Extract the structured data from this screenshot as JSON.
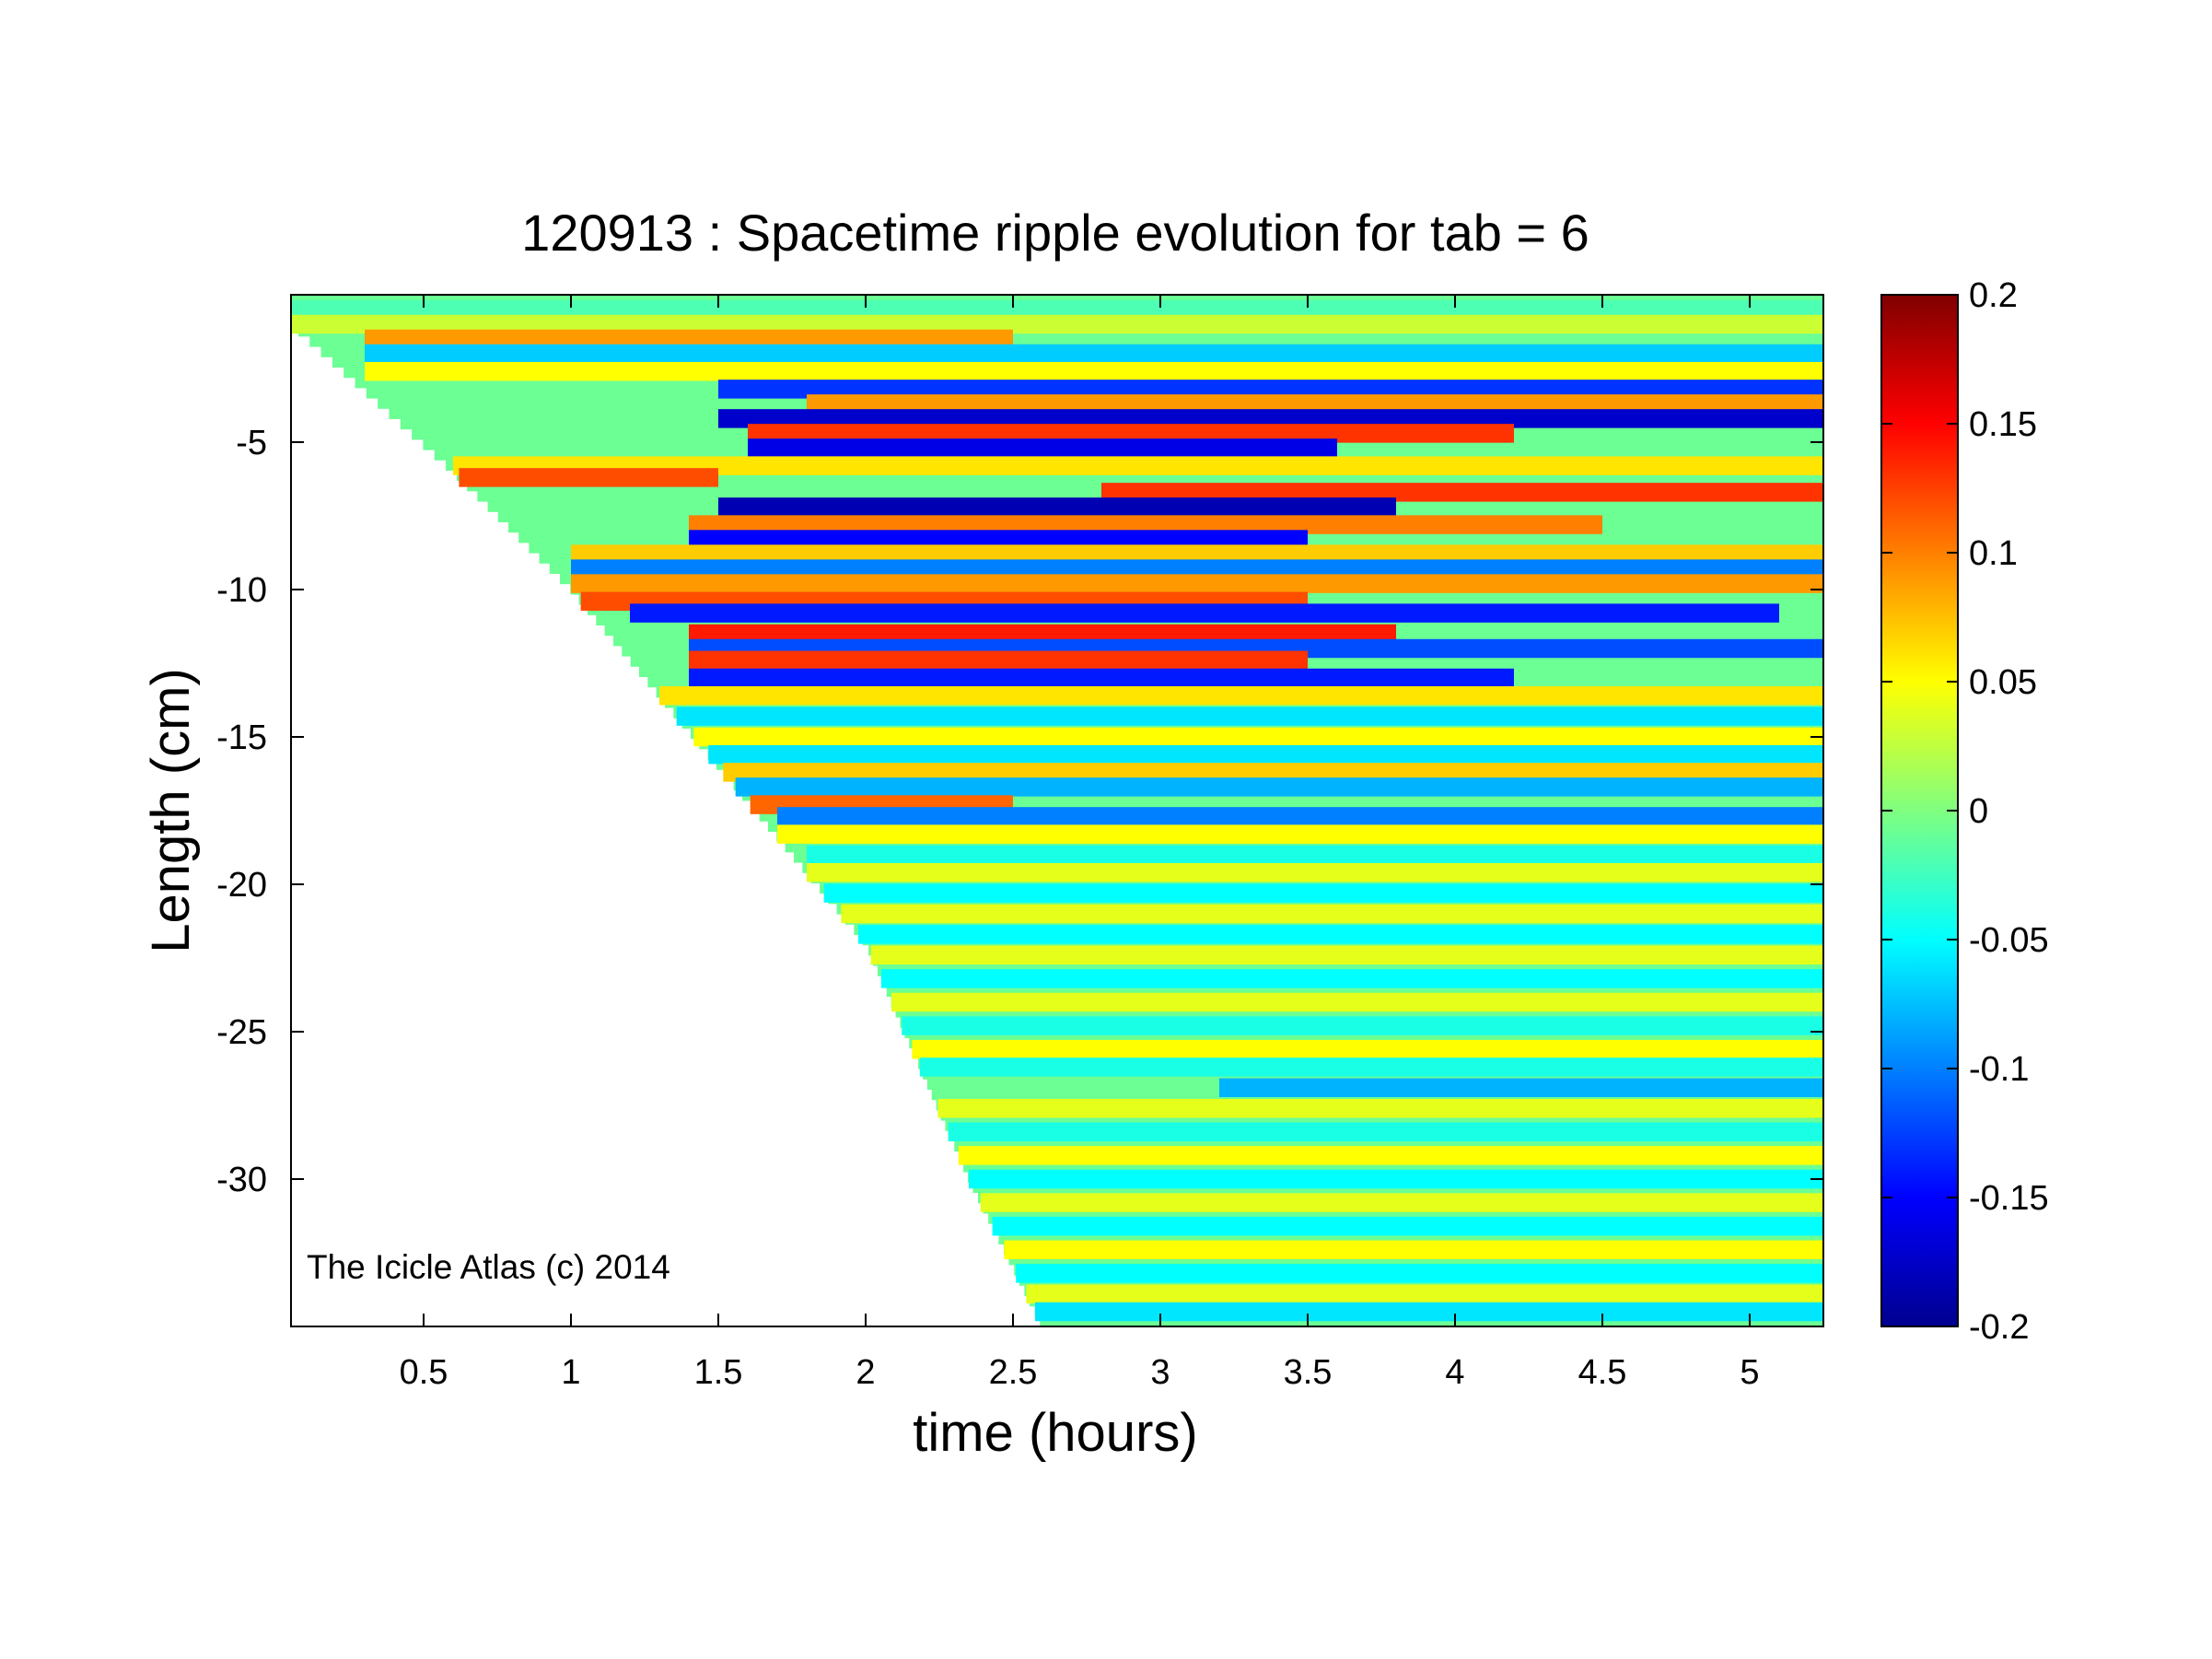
{
  "chart_data": {
    "type": "heatmap",
    "title": "120913 : Spacetime ripple evolution for tab = 6",
    "xlabel": "time (hours)",
    "ylabel": "Length (cm)",
    "xlim": [
      0.05,
      5.25
    ],
    "ylim": [
      -35,
      0
    ],
    "x_ticks": [
      0.5,
      1,
      1.5,
      2,
      2.5,
      3,
      3.5,
      4,
      4.5,
      5
    ],
    "x_tick_labels": [
      "0.5",
      "1",
      "1.5",
      "2",
      "2.5",
      "3",
      "3.5",
      "4",
      "4.5",
      "5"
    ],
    "y_ticks": [
      -5,
      -10,
      -15,
      -20,
      -25,
      -30
    ],
    "y_tick_labels": [
      "-5",
      "-10",
      "-15",
      "-20",
      "-25",
      "-30"
    ],
    "colorbar": {
      "range": [
        -0.2,
        0.2
      ],
      "ticks": [
        0.2,
        0.15,
        0.1,
        0.05,
        0,
        -0.05,
        -0.1,
        -0.15,
        -0.2
      ],
      "tick_labels": [
        "0.2",
        "0.15",
        "0.1",
        "0.05",
        "0",
        "-0.05",
        "-0.1",
        "-0.15",
        "-0.2"
      ],
      "colormap": "jet"
    },
    "annotation": "The Icicle Atlas (c) 2014",
    "growth_front": {
      "description_units": "time (hours) at which each length first appears",
      "points": [
        [
          0.05,
          -1
        ],
        [
          0.6,
          -6
        ],
        [
          1.0,
          -10
        ],
        [
          1.5,
          -16
        ],
        [
          2.0,
          -22
        ],
        [
          2.35,
          -30
        ],
        [
          2.6,
          -35
        ]
      ]
    },
    "bands": [
      {
        "y": -0.5,
        "value": -0.02,
        "t0": 0.05,
        "t1": 5.25
      },
      {
        "y": -1.0,
        "value": 0.03,
        "t0": 0.05,
        "t1": 5.25
      },
      {
        "y": -1.5,
        "value": 0.09,
        "t0": 0.3,
        "t1": 2.5
      },
      {
        "y": -2.0,
        "value": -0.07,
        "t0": 0.3,
        "t1": 5.25
      },
      {
        "y": -2.6,
        "value": 0.05,
        "t0": 0.3,
        "t1": 5.25
      },
      {
        "y": -3.2,
        "value": -0.13,
        "t0": 1.5,
        "t1": 5.25
      },
      {
        "y": -3.7,
        "value": 0.09,
        "t0": 1.8,
        "t1": 5.25
      },
      {
        "y": -4.2,
        "value": -0.17,
        "t0": 1.5,
        "t1": 5.25
      },
      {
        "y": -4.7,
        "value": 0.13,
        "t0": 1.6,
        "t1": 4.2
      },
      {
        "y": -5.2,
        "value": -0.16,
        "t0": 1.6,
        "t1": 3.6
      },
      {
        "y": -5.8,
        "value": 0.06,
        "t0": 0.6,
        "t1": 5.25
      },
      {
        "y": -6.2,
        "value": 0.12,
        "t0": 0.6,
        "t1": 1.5
      },
      {
        "y": -6.7,
        "value": 0.13,
        "t0": 2.8,
        "t1": 5.25
      },
      {
        "y": -7.2,
        "value": -0.18,
        "t0": 1.5,
        "t1": 3.8
      },
      {
        "y": -7.8,
        "value": 0.1,
        "t0": 1.4,
        "t1": 4.5
      },
      {
        "y": -8.3,
        "value": -0.15,
        "t0": 1.4,
        "t1": 3.5
      },
      {
        "y": -8.8,
        "value": 0.07,
        "t0": 1.0,
        "t1": 5.25
      },
      {
        "y": -9.3,
        "value": -0.1,
        "t0": 1.0,
        "t1": 5.25
      },
      {
        "y": -9.8,
        "value": 0.09,
        "t0": 1.0,
        "t1": 5.25
      },
      {
        "y": -10.4,
        "value": 0.12,
        "t0": 1.0,
        "t1": 3.5
      },
      {
        "y": -10.8,
        "value": -0.14,
        "t0": 1.2,
        "t1": 5.1
      },
      {
        "y": -11.5,
        "value": 0.14,
        "t0": 1.4,
        "t1": 3.8
      },
      {
        "y": -12.0,
        "value": -0.12,
        "t0": 1.4,
        "t1": 5.25
      },
      {
        "y": -12.4,
        "value": 0.13,
        "t0": 1.4,
        "t1": 3.5
      },
      {
        "y": -13.0,
        "value": -0.14,
        "t0": 1.4,
        "t1": 4.2
      },
      {
        "y": -13.6,
        "value": 0.06,
        "t0": 1.2,
        "t1": 5.25
      },
      {
        "y": -14.3,
        "value": -0.06,
        "t0": 1.2,
        "t1": 5.25
      },
      {
        "y": -15.0,
        "value": 0.05,
        "t0": 1.3,
        "t1": 5.25
      },
      {
        "y": -15.6,
        "value": -0.06,
        "t0": 1.3,
        "t1": 5.25
      },
      {
        "y": -16.2,
        "value": 0.07,
        "t0": 1.3,
        "t1": 5.25
      },
      {
        "y": -16.7,
        "value": -0.08,
        "t0": 1.5,
        "t1": 5.25
      },
      {
        "y": -17.3,
        "value": 0.11,
        "t0": 1.5,
        "t1": 2.5
      },
      {
        "y": -17.7,
        "value": -0.1,
        "t0": 1.7,
        "t1": 5.25
      },
      {
        "y": -18.3,
        "value": 0.05,
        "t0": 1.7,
        "t1": 5.25
      },
      {
        "y": -19.0,
        "value": -0.04,
        "t0": 1.8,
        "t1": 5.25
      },
      {
        "y": -19.6,
        "value": 0.04,
        "t0": 1.8,
        "t1": 5.25
      },
      {
        "y": -20.3,
        "value": -0.05,
        "t0": 1.8,
        "t1": 5.25
      },
      {
        "y": -21.0,
        "value": 0.04,
        "t0": 1.9,
        "t1": 5.25
      },
      {
        "y": -21.7,
        "value": -0.05,
        "t0": 1.9,
        "t1": 5.25
      },
      {
        "y": -22.4,
        "value": 0.04,
        "t0": 1.9,
        "t1": 5.25
      },
      {
        "y": -23.2,
        "value": -0.05,
        "t0": 2.0,
        "t1": 5.25
      },
      {
        "y": -24.0,
        "value": 0.04,
        "t0": 2.0,
        "t1": 5.25
      },
      {
        "y": -24.8,
        "value": -0.04,
        "t0": 2.0,
        "t1": 5.25
      },
      {
        "y": -25.6,
        "value": 0.05,
        "t0": 2.1,
        "t1": 5.25
      },
      {
        "y": -26.2,
        "value": -0.04,
        "t0": 2.1,
        "t1": 5.25
      },
      {
        "y": -26.9,
        "value": -0.08,
        "t0": 3.2,
        "t1": 5.25
      },
      {
        "y": -27.6,
        "value": 0.04,
        "t0": 2.2,
        "t1": 5.25
      },
      {
        "y": -28.4,
        "value": -0.04,
        "t0": 2.2,
        "t1": 5.25
      },
      {
        "y": -29.2,
        "value": 0.05,
        "t0": 2.2,
        "t1": 5.25
      },
      {
        "y": -30.0,
        "value": -0.05,
        "t0": 2.3,
        "t1": 5.25
      },
      {
        "y": -30.8,
        "value": 0.04,
        "t0": 2.3,
        "t1": 5.25
      },
      {
        "y": -31.6,
        "value": -0.05,
        "t0": 2.3,
        "t1": 5.25
      },
      {
        "y": -32.4,
        "value": 0.05,
        "t0": 2.4,
        "t1": 5.25
      },
      {
        "y": -33.2,
        "value": -0.05,
        "t0": 2.4,
        "t1": 5.25
      },
      {
        "y": -33.9,
        "value": 0.04,
        "t0": 2.5,
        "t1": 5.25
      },
      {
        "y": -34.5,
        "value": -0.06,
        "t0": 2.5,
        "t1": 5.25
      }
    ]
  }
}
